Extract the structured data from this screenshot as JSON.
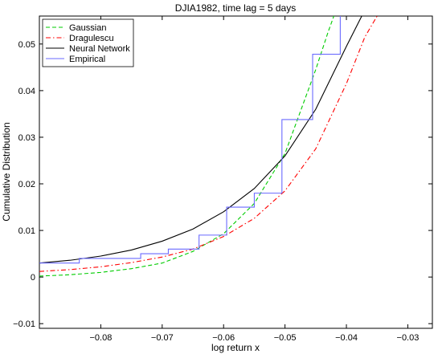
{
  "chart_data": {
    "type": "line",
    "title": "DJIA1982, time lag = 5 days",
    "xlabel": "log return x",
    "ylabel": "Cumulative Distribution",
    "xlim": [
      -0.09,
      -0.026
    ],
    "ylim": [
      -0.011,
      0.056
    ],
    "xticks": [
      -0.08,
      -0.07,
      -0.06,
      -0.05,
      -0.04,
      -0.03
    ],
    "xtick_labels": [
      "−0.08",
      "−0.07",
      "−0.06",
      "−0.05",
      "−0.04",
      "−0.03"
    ],
    "yticks": [
      -0.01,
      0,
      0.01,
      0.02,
      0.03,
      0.04,
      0.05
    ],
    "ytick_labels": [
      "−0.01",
      "0",
      "0.01",
      "0.02",
      "0.03",
      "0.04",
      "0.05"
    ],
    "grid": false,
    "legend_position": "top-left",
    "series": [
      {
        "name": "Gaussian",
        "color": "#00cc00",
        "style": "dashed",
        "x": [
          -0.09,
          -0.085,
          -0.08,
          -0.075,
          -0.07,
          -0.065,
          -0.06,
          -0.055,
          -0.05,
          -0.045,
          -0.043,
          -0.0415
        ],
        "y": [
          0.0002,
          0.0005,
          0.001,
          0.0018,
          0.003,
          0.0055,
          0.0093,
          0.0158,
          0.0265,
          0.0445,
          0.0525,
          0.058
        ]
      },
      {
        "name": "Dragulescu",
        "color": "#ff0000",
        "style": "dashdot",
        "x": [
          -0.09,
          -0.085,
          -0.08,
          -0.075,
          -0.07,
          -0.065,
          -0.06,
          -0.055,
          -0.05,
          -0.045,
          -0.04,
          -0.037,
          -0.035
        ],
        "y": [
          0.0012,
          0.0016,
          0.0022,
          0.0031,
          0.0043,
          0.006,
          0.0087,
          0.0126,
          0.0185,
          0.0275,
          0.0415,
          0.0515,
          0.056
        ]
      },
      {
        "name": "Neural Network",
        "color": "#000000",
        "style": "solid",
        "x": [
          -0.09,
          -0.085,
          -0.08,
          -0.075,
          -0.07,
          -0.065,
          -0.06,
          -0.055,
          -0.05,
          -0.045,
          -0.04,
          -0.0375
        ],
        "y": [
          0.003,
          0.0036,
          0.0045,
          0.0058,
          0.0077,
          0.0103,
          0.014,
          0.019,
          0.026,
          0.036,
          0.0495,
          0.056
        ]
      },
      {
        "name": "Empirical",
        "color": "#6a6aff",
        "style": "step",
        "x": [
          -0.09,
          -0.0835,
          -0.0735,
          -0.069,
          -0.064,
          -0.0595,
          -0.055,
          -0.0505,
          -0.0455,
          -0.041,
          -0.041
        ],
        "y": [
          0.003,
          0.004,
          0.005,
          0.006,
          0.009,
          0.015,
          0.018,
          0.0338,
          0.0478,
          0.0575,
          0.0575
        ]
      }
    ]
  }
}
